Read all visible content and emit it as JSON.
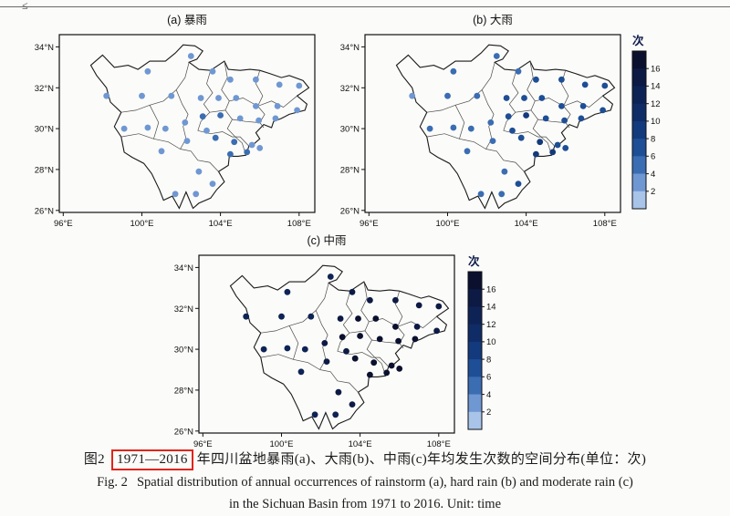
{
  "page": {
    "artifact": "≤",
    "caption_zh": {
      "prefix": "图2",
      "highlight": "1971—2016",
      "rest": "年四川盆地暴雨(a)、大雨(b)、中雨(c)年均发生次数的空间分布(单位：次)"
    },
    "caption_en_label": "Fig. 2",
    "caption_en_text": "Spatial distribution of annual occurrences of rainstorm (a), hard rain (b) and moderate rain (c)",
    "caption_en_line2": "in the Sichuan Basin from 1971 to 2016. Unit: time",
    "highlight_box_color": "#e0251b"
  },
  "chart_data": {
    "type": "scatter",
    "subtype": "map-scatter",
    "region": "Sichuan Basin",
    "unit": "次",
    "lon_range": [
      95.8,
      108.8
    ],
    "lat_range": [
      25.9,
      34.6
    ],
    "x_ticks": [
      {
        "lon": 96,
        "label": "96°E"
      },
      {
        "lon": 100,
        "label": "100°E"
      },
      {
        "lon": 104,
        "label": "104°E"
      },
      {
        "lon": 108,
        "label": "108°E"
      }
    ],
    "y_ticks": [
      {
        "lat": 34,
        "label": "34°N"
      },
      {
        "lat": 32,
        "label": "32°N"
      },
      {
        "lat": 30,
        "label": "30°N"
      },
      {
        "lat": 28,
        "label": "28°N"
      },
      {
        "lat": 26,
        "label": "26°N"
      }
    ],
    "colorbar": {
      "title": "次",
      "tick_labels": [
        "16",
        "14",
        "12",
        "10",
        "8",
        "6",
        "4",
        "2"
      ],
      "colors": [
        "#0a102e",
        "#0c1a44",
        "#0e2355",
        "#102c66",
        "#123a7c",
        "#1d4e96",
        "#3a6db2",
        "#6f97d2",
        "#a8c4e8"
      ]
    },
    "stations": [
      [
        100.3,
        32.8
      ],
      [
        102.5,
        33.55
      ],
      [
        103.6,
        32.8
      ],
      [
        104.5,
        32.4
      ],
      [
        105.8,
        32.4
      ],
      [
        107.0,
        32.15
      ],
      [
        108.0,
        32.1
      ],
      [
        98.2,
        31.6
      ],
      [
        100.0,
        31.6
      ],
      [
        101.5,
        31.6
      ],
      [
        103.0,
        31.5
      ],
      [
        103.9,
        31.5
      ],
      [
        104.8,
        31.5
      ],
      [
        105.8,
        31.1
      ],
      [
        106.9,
        31.1
      ],
      [
        107.9,
        30.9
      ],
      [
        99.1,
        30.0
      ],
      [
        100.3,
        30.05
      ],
      [
        101.2,
        30.0
      ],
      [
        102.2,
        30.3
      ],
      [
        103.1,
        30.6
      ],
      [
        104.0,
        30.65
      ],
      [
        105.0,
        30.5
      ],
      [
        105.95,
        30.4
      ],
      [
        106.8,
        30.5
      ],
      [
        101.0,
        28.9
      ],
      [
        102.3,
        29.4
      ],
      [
        103.3,
        29.9
      ],
      [
        103.75,
        29.55
      ],
      [
        104.7,
        29.35
      ],
      [
        105.6,
        29.2
      ],
      [
        106.0,
        29.05
      ],
      [
        104.5,
        28.75
      ],
      [
        105.35,
        28.85
      ],
      [
        102.9,
        27.9
      ],
      [
        103.6,
        27.3
      ],
      [
        102.75,
        26.8
      ],
      [
        101.7,
        26.8
      ]
    ],
    "panels": [
      {
        "id": "a",
        "title": "(a) 暴雨",
        "name": "rainstorm",
        "has_colorbar": false,
        "values": [
          2,
          2,
          3,
          3,
          3,
          3,
          3,
          2,
          2,
          2,
          3,
          3,
          3,
          3,
          3,
          3,
          2,
          2,
          2,
          3,
          4,
          4,
          3,
          3,
          3,
          2,
          3,
          3,
          4,
          4,
          3,
          3,
          4,
          4,
          2,
          3,
          2,
          2
        ]
      },
      {
        "id": "b",
        "title": "(b) 大雨",
        "name": "hard-rain",
        "has_colorbar": true,
        "values": [
          4,
          4,
          5,
          6,
          6,
          6,
          6,
          3,
          4,
          4,
          6,
          7,
          7,
          7,
          7,
          6,
          4,
          4,
          4,
          5,
          7,
          8,
          7,
          7,
          7,
          4,
          5,
          6,
          7,
          8,
          7,
          7,
          8,
          8,
          5,
          6,
          5,
          4
        ]
      },
      {
        "id": "c",
        "title": "(c) 中雨",
        "name": "moderate-rain",
        "has_colorbar": true,
        "values": [
          13,
          13,
          14,
          15,
          15,
          15,
          15,
          12,
          13,
          13,
          15,
          16,
          16,
          16,
          15,
          15,
          13,
          13,
          13,
          14,
          16,
          17,
          16,
          16,
          16,
          13,
          14,
          15,
          16,
          17,
          16,
          16,
          17,
          16,
          14,
          15,
          13,
          13
        ]
      }
    ]
  }
}
